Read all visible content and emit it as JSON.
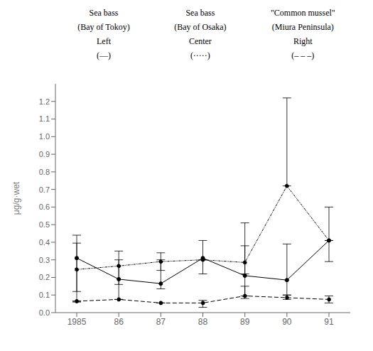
{
  "chart_data": {
    "type": "line",
    "ylabel": "μg/g·wet",
    "categories": [
      "1985",
      "86",
      "87",
      "88",
      "89",
      "90",
      "91"
    ],
    "ylim": [
      0,
      1.3
    ],
    "yticks": [
      {
        "value": 0,
        "label": "0.0"
      },
      0.1,
      0.2,
      0.3,
      0.4,
      0.5,
      0.6,
      0.7,
      0.8,
      0.9,
      {
        "value": 1.0,
        "label": "1.0"
      },
      1.1,
      1.2
    ],
    "grid": false,
    "series": [
      {
        "name": "Sea bass\n(Bay of Tokoy)\nLeft\n(—)",
        "color": "#000000",
        "line_style": "solid",
        "marker": "circle",
        "values": [
          0.31,
          0.19,
          0.165,
          0.31,
          0.21,
          0.185,
          0.41
        ],
        "err_upper": [
          0.44,
          0.35,
          0.34,
          0.41,
          0.38,
          0.39,
          0.6
        ],
        "err_lower": [
          0.12,
          0.075,
          0.135,
          0.22,
          0.095,
          0.1,
          0.29
        ]
      },
      {
        "name": "Sea bass\n(Bay of Osaka)\nCenter\n(·····)",
        "color": "#000000",
        "line_style": "dotted",
        "marker": "circle",
        "values": [
          0.245,
          0.265,
          0.29,
          0.3,
          0.285,
          0.72,
          0.41
        ],
        "err_upper": [
          0.395,
          0.3,
          0.3,
          0.3,
          0.51,
          1.22,
          0.41
        ],
        "err_lower": [
          0.06,
          0.16,
          0.24,
          0.3,
          0.22,
          0.72,
          0.41
        ]
      },
      {
        "name": "\"Common mussel\"\n(Miura Peninsula)\nRight\n(– – –)",
        "color": "#000000",
        "line_style": "dashed",
        "marker": "circle",
        "values": [
          0.065,
          0.075,
          0.055,
          0.055,
          0.095,
          0.085,
          0.075
        ],
        "err_upper": [
          0.065,
          0.075,
          0.055,
          0.07,
          0.15,
          0.1,
          0.095
        ],
        "err_lower": [
          0.065,
          0.075,
          0.055,
          0.03,
          0.08,
          0.075,
          0.055
        ]
      }
    ]
  }
}
